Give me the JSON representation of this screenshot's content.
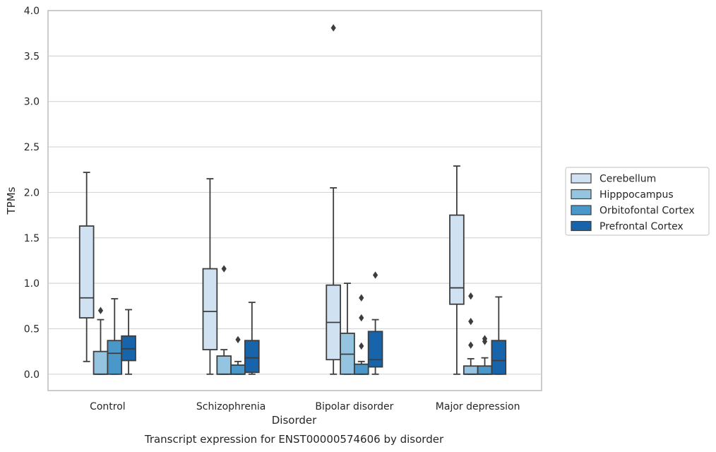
{
  "chart_data": {
    "type": "box",
    "caption": "Transcript expression for ENST00000574606 by disorder",
    "xlabel": "Disorder",
    "ylabel": "TPMs",
    "ylim": [
      -0.18,
      4.0
    ],
    "yticks": [
      "0.0",
      "0.5",
      "1.0",
      "1.5",
      "2.0",
      "2.5",
      "3.0",
      "3.5",
      "4.0"
    ],
    "ytick_values": [
      0.0,
      0.5,
      1.0,
      1.5,
      2.0,
      2.5,
      3.0,
      3.5,
      4.0
    ],
    "categories": [
      "Control",
      "Schizophrenia",
      "Bipolar disorder",
      "Major depression"
    ],
    "grid": "horizontal",
    "legend_position": "right",
    "series": [
      {
        "name": "Cerebellum",
        "color": "#d0e1f2",
        "boxes": [
          {
            "min": 0.14,
            "q1": 0.62,
            "median": 0.84,
            "q3": 1.63,
            "max": 2.22,
            "outliers": []
          },
          {
            "min": 0.0,
            "q1": 0.27,
            "median": 0.69,
            "q3": 1.16,
            "max": 2.15,
            "outliers": []
          },
          {
            "min": 0.0,
            "q1": 0.16,
            "median": 0.57,
            "q3": 0.98,
            "max": 2.05,
            "outliers": [
              3.81
            ]
          },
          {
            "min": 0.0,
            "q1": 0.77,
            "median": 0.95,
            "q3": 1.75,
            "max": 2.29,
            "outliers": []
          }
        ]
      },
      {
        "name": "Hipppocampus",
        "color": "#94c4df",
        "boxes": [
          {
            "min": 0.0,
            "q1": 0.0,
            "median": 0.0,
            "q3": 0.25,
            "max": 0.6,
            "outliers": [
              0.7
            ]
          },
          {
            "min": 0.0,
            "q1": 0.0,
            "median": 0.0,
            "q3": 0.2,
            "max": 0.27,
            "outliers": [
              1.16
            ]
          },
          {
            "min": 0.0,
            "q1": 0.0,
            "median": 0.22,
            "q3": 0.45,
            "max": 1.0,
            "outliers": []
          },
          {
            "min": 0.0,
            "q1": 0.0,
            "median": 0.0,
            "q3": 0.09,
            "max": 0.17,
            "outliers": [
              0.86,
              0.58,
              0.32
            ]
          }
        ]
      },
      {
        "name": "Orbitofontal Cortex",
        "color": "#4a98c9",
        "boxes": [
          {
            "min": 0.0,
            "q1": 0.0,
            "median": 0.23,
            "q3": 0.37,
            "max": 0.83,
            "outliers": []
          },
          {
            "min": 0.0,
            "q1": 0.0,
            "median": 0.0,
            "q3": 0.1,
            "max": 0.14,
            "outliers": [
              0.38
            ]
          },
          {
            "min": 0.0,
            "q1": 0.0,
            "median": 0.0,
            "q3": 0.11,
            "max": 0.14,
            "outliers": [
              0.84,
              0.62,
              0.31
            ]
          },
          {
            "min": 0.0,
            "q1": 0.0,
            "median": 0.0,
            "q3": 0.09,
            "max": 0.18,
            "outliers": [
              0.39,
              0.36
            ]
          }
        ]
      },
      {
        "name": "Prefrontal Cortex",
        "color": "#1764ab",
        "boxes": [
          {
            "min": 0.0,
            "q1": 0.15,
            "median": 0.28,
            "q3": 0.42,
            "max": 0.71,
            "outliers": []
          },
          {
            "min": 0.0,
            "q1": 0.02,
            "median": 0.18,
            "q3": 0.37,
            "max": 0.79,
            "outliers": []
          },
          {
            "min": 0.0,
            "q1": 0.08,
            "median": 0.16,
            "q3": 0.47,
            "max": 0.6,
            "outliers": [
              1.09
            ]
          },
          {
            "min": 0.0,
            "q1": 0.0,
            "median": 0.15,
            "q3": 0.37,
            "max": 0.85,
            "outliers": []
          }
        ]
      }
    ]
  }
}
